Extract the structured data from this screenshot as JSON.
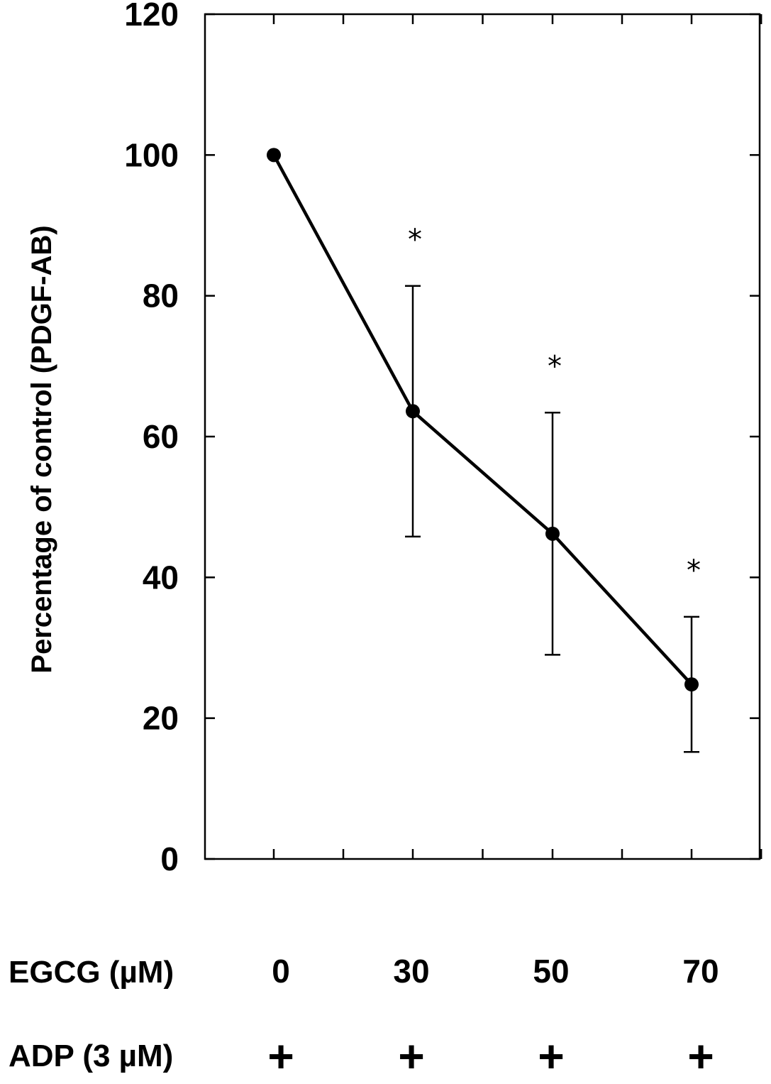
{
  "chart_data": {
    "type": "line",
    "ylabel": "Percentage of control (PDGF-AB)",
    "ylim": [
      0,
      120
    ],
    "yticks": [
      "0",
      "20",
      "40",
      "60",
      "80",
      "100",
      "120"
    ],
    "categories": [
      "0",
      "30",
      "50",
      "70"
    ],
    "series": [
      {
        "values": [
          100,
          63.6,
          46.2,
          24.8
        ],
        "error": [
          0,
          17.8,
          17.2,
          9.6
        ],
        "significance": [
          "",
          "*",
          "*",
          "*"
        ]
      }
    ],
    "rows": [
      {
        "label": "EGCG (µM)",
        "values": [
          "0",
          "30",
          "50",
          "70"
        ]
      },
      {
        "label": "ADP (3 µM)",
        "values": [
          "+",
          "+",
          "+",
          "+"
        ]
      }
    ],
    "grid": false,
    "colors": {
      "line": "#000000",
      "marker": "#000000",
      "axis": "#000000"
    }
  }
}
